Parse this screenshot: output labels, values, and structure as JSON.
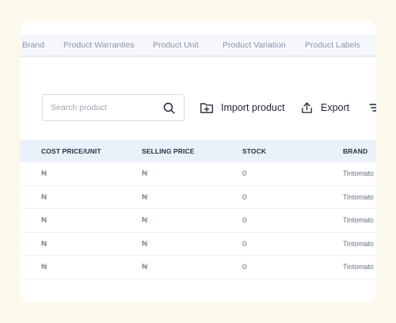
{
  "tabs": [
    {
      "label": "Brand"
    },
    {
      "label": "Product Warranties"
    },
    {
      "label": "Product Unit"
    },
    {
      "label": "Product Variation"
    },
    {
      "label": "Product Labels"
    }
  ],
  "search": {
    "placeholder": "Search product"
  },
  "actions": {
    "import_label": "Import product",
    "export_label": "Export"
  },
  "table": {
    "headers": {
      "cost_price": "COST PRICE/UNIT",
      "selling_price": "SELLING PRICE",
      "stock": "STOCK",
      "brand": "BRAND"
    },
    "rows": [
      {
        "cost_price": "₦",
        "selling_price": "₦",
        "stock": "0",
        "brand": "Tintomato"
      },
      {
        "cost_price": "₦",
        "selling_price": "₦",
        "stock": "0",
        "brand": "Tintomato"
      },
      {
        "cost_price": "₦",
        "selling_price": "₦",
        "stock": "0",
        "brand": "Tintomato"
      },
      {
        "cost_price": "₦",
        "selling_price": "₦",
        "stock": "0",
        "brand": "Tintomato"
      },
      {
        "cost_price": "₦",
        "selling_price": "₦",
        "stock": "0",
        "brand": "Tintomato"
      }
    ]
  },
  "colors": {
    "page_background": "#fdf8ec",
    "header_row_background": "#eaf1fb",
    "tab_bar_background": "#f5f7fc",
    "tab_text": "#8b93a7"
  },
  "icons": {
    "search": "search-icon",
    "import": "folder-plus-icon",
    "export": "upload-icon",
    "filter": "filter-lines-icon"
  }
}
